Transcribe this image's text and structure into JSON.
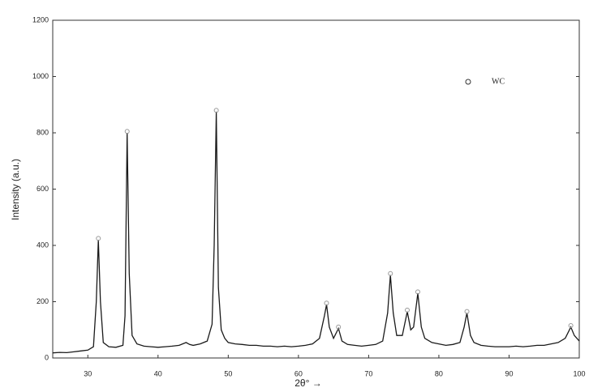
{
  "chart_data": {
    "type": "line",
    "x_label": "2θ° →",
    "y_label": "Intensity (a.u.)",
    "xlim": [
      25,
      100
    ],
    "xticks": [
      30,
      40,
      50,
      60,
      70,
      80,
      90,
      100
    ],
    "ylim": [
      0,
      1200
    ],
    "yticks": [
      0,
      200,
      400,
      600,
      800,
      1000,
      1200
    ],
    "color": "#1a1a1a",
    "x": [
      25,
      26,
      27,
      28,
      29,
      30,
      30.8,
      31.2,
      31.5,
      31.8,
      32.2,
      33,
      34,
      35,
      35.3,
      35.6,
      35.9,
      36.3,
      37,
      38,
      39,
      40,
      41,
      42,
      43,
      44,
      44.5,
      45,
      46,
      47,
      47.7,
      48.0,
      48.3,
      48.6,
      49,
      49.5,
      50,
      51,
      52,
      53,
      54,
      55,
      56,
      57,
      58,
      59,
      60,
      61,
      62,
      63,
      63.7,
      64.0,
      64.4,
      65,
      65.7,
      66.2,
      67,
      68,
      69,
      70,
      71,
      72,
      72.7,
      73.1,
      73.5,
      74,
      74.8,
      75.5,
      76,
      76.4,
      77.0,
      77.5,
      78,
      79,
      80,
      81,
      82,
      83,
      83.6,
      84.0,
      84.5,
      85,
      86,
      87,
      88,
      89,
      90,
      91,
      92,
      93,
      94,
      95,
      96,
      97,
      98,
      98.8,
      99.3,
      100
    ],
    "values": [
      18,
      20,
      19,
      22,
      25,
      28,
      40,
      200,
      420,
      200,
      55,
      40,
      38,
      45,
      150,
      800,
      300,
      80,
      50,
      42,
      40,
      38,
      40,
      42,
      45,
      55,
      48,
      45,
      50,
      60,
      120,
      400,
      875,
      250,
      100,
      70,
      55,
      50,
      48,
      45,
      45,
      42,
      42,
      40,
      42,
      40,
      42,
      45,
      50,
      70,
      150,
      190,
      110,
      70,
      105,
      60,
      48,
      45,
      42,
      45,
      48,
      60,
      160,
      295,
      160,
      80,
      80,
      165,
      100,
      110,
      230,
      110,
      70,
      55,
      50,
      45,
      48,
      55,
      110,
      160,
      80,
      55,
      45,
      42,
      40,
      40,
      40,
      42,
      40,
      42,
      45,
      45,
      50,
      55,
      70,
      110,
      80,
      60
    ],
    "peaks": {
      "name": "WC",
      "color": "#999999",
      "x": [
        31.5,
        35.6,
        48.3,
        64.0,
        65.7,
        73.1,
        75.5,
        77.0,
        84.0,
        98.8
      ],
      "values": [
        425,
        805,
        880,
        195,
        110,
        300,
        170,
        235,
        165,
        115
      ]
    }
  }
}
